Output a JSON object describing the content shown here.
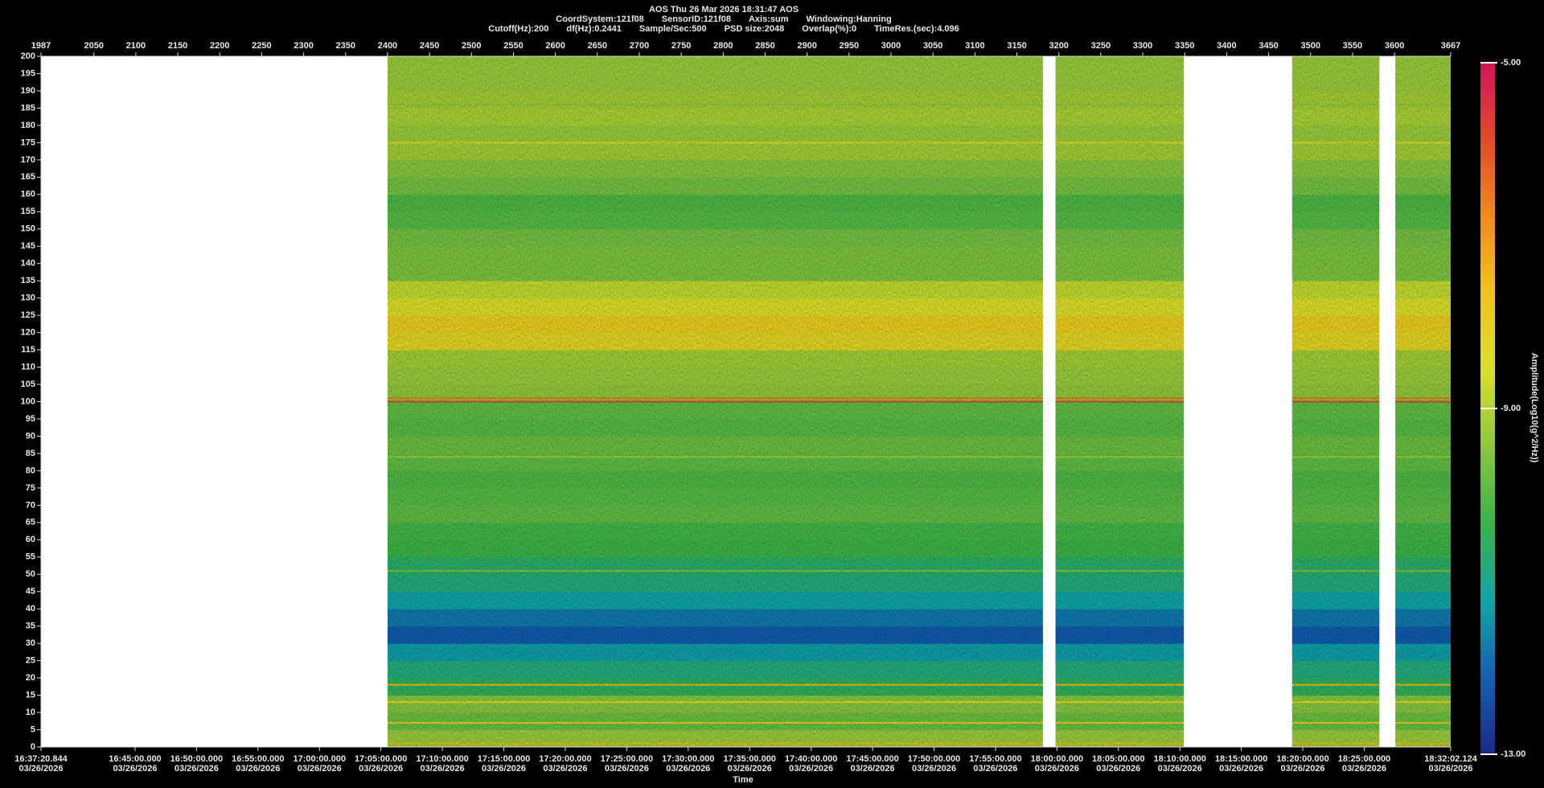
{
  "chart_data": {
    "type": "spectrogram",
    "title": "AOS  Thu 26 Mar 2026 18:31:47  AOS",
    "info": [
      [
        "CoordSystem:121f08",
        "SensorID:121f08",
        "Axis:sum",
        "Windowing:Hanning"
      ],
      [
        "Cutoff(Hz):200",
        "df(Hz):0.2441",
        "Sample/Sec:500",
        "PSD size:2048",
        "Overlap(%):0",
        "TimeRes.(sec):4.096"
      ]
    ],
    "xlim": [
      1987,
      3667
    ],
    "xticks": [
      1987,
      2050,
      2100,
      2150,
      2200,
      2250,
      2300,
      2350,
      2400,
      2450,
      2500,
      2550,
      2600,
      2650,
      2700,
      2750,
      2800,
      2850,
      2900,
      2950,
      3000,
      3050,
      3100,
      3150,
      3200,
      3250,
      3300,
      3350,
      3400,
      3450,
      3500,
      3550,
      3600,
      3667
    ],
    "x2label": "Time",
    "x2_date": "03/26/2026",
    "x2lim": [
      59840.844,
      66722.124
    ],
    "x2ticks": [
      {
        "value": 59840.844,
        "label": "16:37:20.844"
      },
      {
        "value": 60300,
        "label": "16:45:00.000"
      },
      {
        "value": 60600,
        "label": "16:50:00.000"
      },
      {
        "value": 60900,
        "label": "16:55:00.000"
      },
      {
        "value": 61200,
        "label": "17:00:00.000"
      },
      {
        "value": 61500,
        "label": "17:05:00.000"
      },
      {
        "value": 61800,
        "label": "17:10:00.000"
      },
      {
        "value": 62100,
        "label": "17:15:00.000"
      },
      {
        "value": 62400,
        "label": "17:20:00.000"
      },
      {
        "value": 62700,
        "label": "17:25:00.000"
      },
      {
        "value": 63000,
        "label": "17:30:00.000"
      },
      {
        "value": 63300,
        "label": "17:35:00.000"
      },
      {
        "value": 63600,
        "label": "17:40:00.000"
      },
      {
        "value": 63900,
        "label": "17:45:00.000"
      },
      {
        "value": 64200,
        "label": "17:50:00.000"
      },
      {
        "value": 64500,
        "label": "17:55:00.000"
      },
      {
        "value": 64800,
        "label": "18:00:00.000"
      },
      {
        "value": 65100,
        "label": "18:05:00.000"
      },
      {
        "value": 65400,
        "label": "18:10:00.000"
      },
      {
        "value": 65700,
        "label": "18:15:00.000"
      },
      {
        "value": 66000,
        "label": "18:20:00.000"
      },
      {
        "value": 66300,
        "label": "18:25:00.000"
      },
      {
        "value": 66722.124,
        "label": "18:32:02.124"
      }
    ],
    "ylim": [
      0,
      200
    ],
    "yticks": [
      0,
      5,
      10,
      15,
      20,
      25,
      30,
      35,
      40,
      45,
      50,
      55,
      60,
      65,
      70,
      75,
      80,
      85,
      90,
      95,
      100,
      105,
      110,
      115,
      120,
      125,
      130,
      135,
      140,
      145,
      150,
      155,
      160,
      165,
      170,
      175,
      180,
      185,
      190,
      195,
      200
    ],
    "segments": [
      [
        2400,
        3181
      ],
      [
        3196,
        3349
      ],
      [
        3478,
        3582
      ],
      [
        3601,
        3667
      ]
    ],
    "freq_bins": [
      0,
      5,
      10,
      15,
      20,
      25,
      30,
      35,
      40,
      45,
      50,
      55,
      60,
      65,
      70,
      75,
      80,
      85,
      90,
      95,
      100,
      105,
      110,
      115,
      120,
      125,
      130,
      135,
      140,
      145,
      150,
      155,
      160,
      165,
      170,
      175,
      180,
      185,
      190,
      195,
      200
    ],
    "amplitude": [
      -9.3,
      -9.8,
      -9.5,
      -10.5,
      -10.8,
      -11.3,
      -12.2,
      -11.8,
      -11.2,
      -10.8,
      -10.6,
      -10.3,
      -10.2,
      -9.9,
      -10.0,
      -10.1,
      -9.9,
      -9.8,
      -10.0,
      -9.9,
      -9.4,
      -9.3,
      -9.2,
      -8.2,
      -8.0,
      -8.5,
      -8.8,
      -9.6,
      -9.6,
      -9.7,
      -10.0,
      -10.1,
      -9.7,
      -9.5,
      -9.2,
      -9.3,
      -9.1,
      -9.2,
      -9.3,
      -9.3
    ],
    "lines": {
      "freq": [
        1,
        7,
        13,
        18,
        51,
        84,
        100,
        101,
        175,
        186
      ],
      "amplitude": [
        -7.5,
        -8.0,
        -8.5,
        -7.5,
        -9.6,
        -9.2,
        -5.8,
        -6.5,
        -8.3,
        -9.4
      ]
    },
    "clim": [
      -13,
      -5
    ],
    "cticks": [
      {
        "value": -5,
        "label": "-5.00"
      },
      {
        "value": -9,
        "label": "-9.00"
      },
      {
        "value": -13,
        "label": "-13.00"
      }
    ],
    "clabel": "Amplitude(Log10(g^2/Hz))",
    "colormap": [
      "#1b2a84",
      "#1660b0",
      "#13a4a8",
      "#39b24a",
      "#8cc63f",
      "#d8e02a",
      "#f2c21f",
      "#f08a1c",
      "#e04a2a",
      "#d4145a"
    ]
  }
}
